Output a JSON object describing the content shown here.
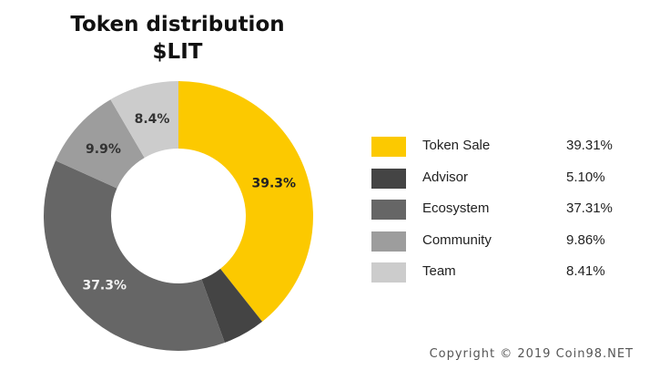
{
  "chart_data": {
    "type": "pie",
    "donut": true,
    "title": "Token distribution",
    "subtitle": "$LIT",
    "categories": [
      "Token Sale",
      "Advisor",
      "Ecosystem",
      "Community",
      "Team"
    ],
    "values": [
      39.31,
      5.1,
      37.31,
      9.86,
      8.41
    ],
    "value_labels": [
      "39.31%",
      "5.10%",
      "37.31%",
      "9.86%",
      "8.41%"
    ],
    "slice_labels": [
      "39.3%",
      "",
      "37.3%",
      "9.9%",
      "8.4%"
    ],
    "colors": [
      "#fcc900",
      "#444444",
      "#666666",
      "#9d9d9d",
      "#cccccc"
    ],
    "legend": "right"
  },
  "footer": {
    "copyright": "Copyright © 2019 Coin98.NET"
  }
}
